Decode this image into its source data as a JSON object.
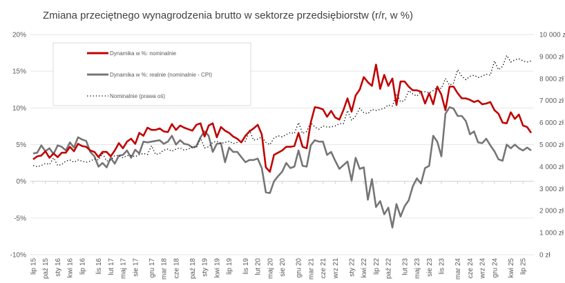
{
  "chart_data": {
    "type": "line",
    "title": "Zmiana przeciętnego wynagrodzenia brutto w sektorze przedsiębiorstw (r/r, w %)",
    "x_start": "lip 15",
    "x_unit": "month",
    "x_tick_labels": [
      {
        "label": "lip 15",
        "i": 0
      },
      {
        "label": "paź 15",
        "i": 3
      },
      {
        "label": "sty 16",
        "i": 6
      },
      {
        "label": "kwi 16",
        "i": 9
      },
      {
        "label": "lip 16",
        "i": 12
      },
      {
        "label": "lis 16",
        "i": 16
      },
      {
        "label": "lut 17",
        "i": 19
      },
      {
        "label": "maj 17",
        "i": 22
      },
      {
        "label": "sie 17",
        "i": 25
      },
      {
        "label": "gru 17",
        "i": 29
      },
      {
        "label": "mar 18",
        "i": 32
      },
      {
        "label": "cze 18",
        "i": 35
      },
      {
        "label": "paź 18",
        "i": 39
      },
      {
        "label": "sty 19",
        "i": 42
      },
      {
        "label": "kwi 19",
        "i": 45
      },
      {
        "label": "lip 19",
        "i": 48
      },
      {
        "label": "lis 19",
        "i": 52
      },
      {
        "label": "lut 20",
        "i": 55
      },
      {
        "label": "maj 20",
        "i": 58
      },
      {
        "label": "sie 20",
        "i": 61
      },
      {
        "label": "gru 20",
        "i": 65
      },
      {
        "label": "mar 21",
        "i": 68
      },
      {
        "label": "cze 21",
        "i": 71
      },
      {
        "label": "wrz 21",
        "i": 74
      },
      {
        "label": "sty 22",
        "i": 78
      },
      {
        "label": "kwi 22",
        "i": 81
      },
      {
        "label": "lip 22",
        "i": 84
      },
      {
        "label": "paź 22",
        "i": 87
      },
      {
        "label": "lut 23",
        "i": 91
      },
      {
        "label": "maj 23",
        "i": 94
      },
      {
        "label": "sie 23",
        "i": 97
      },
      {
        "label": "lis 23",
        "i": 100
      },
      {
        "label": "mar 24",
        "i": 104
      },
      {
        "label": "cze 24",
        "i": 107
      },
      {
        "label": "wrz 24",
        "i": 110
      },
      {
        "label": "gru 24",
        "i": 113
      },
      {
        "label": "kwi 25",
        "i": 117
      },
      {
        "label": "lip 25",
        "i": 120
      }
    ],
    "y_left": {
      "range": [
        -10,
        20
      ],
      "ticks": [
        20,
        15,
        10,
        5,
        0,
        -5,
        -10
      ],
      "tick_labels": [
        "20%",
        "15%",
        "10%",
        "5%",
        "0%",
        "-5%",
        "-10%"
      ]
    },
    "y_right": {
      "range": [
        0,
        10000
      ],
      "ticks": [
        10000,
        9000,
        8000,
        7000,
        6000,
        5000,
        4000,
        3000,
        2000,
        1000,
        0
      ],
      "tick_labels": [
        "10 000 zł",
        "9 000 zł",
        "8 000 zł",
        "7 000 zł",
        "6 000 zł",
        "5 000 zł",
        "4 000 zł",
        "3 000 zł",
        "2 000 zł",
        "1 000 zł",
        "0 zł"
      ]
    },
    "grid": true,
    "legend_position": "top-left",
    "series": [
      {
        "name": "Dynamika w %: nominalnie",
        "axis": "left",
        "color": "#C00000",
        "style": "solid",
        "values": [
          3.0,
          3.4,
          3.5,
          4.1,
          3.2,
          3.8,
          3.3,
          3.9,
          3.9,
          4.7,
          4.1,
          5.1,
          4.8,
          4.7,
          4.2,
          4.0,
          3.3,
          4.0,
          4.0,
          3.4,
          4.2,
          5.2,
          4.5,
          5.4,
          5.8,
          5.1,
          6.6,
          6.2,
          7.3,
          7.0,
          7.0,
          7.2,
          6.8,
          6.7,
          7.8,
          7.0,
          7.6,
          7.3,
          7.1,
          6.9,
          7.7,
          7.9,
          6.1,
          7.6,
          7.9,
          6.0,
          7.4,
          6.9,
          6.6,
          6.1,
          5.8,
          5.3,
          6.2,
          6.8,
          7.2,
          7.7,
          6.4,
          1.9,
          1.3,
          3.6,
          3.9,
          4.2,
          4.7,
          4.7,
          4.8,
          6.6,
          4.7,
          4.5,
          8.0,
          10.1,
          10.0,
          9.8,
          8.8,
          9.6,
          8.7,
          8.4,
          9.7,
          11.3,
          9.5,
          11.7,
          12.5,
          14.2,
          13.5,
          13.0,
          15.9,
          12.6,
          14.5,
          13.0,
          14.0,
          10.4,
          13.6,
          13.6,
          12.9,
          12.4,
          12.4,
          12.2,
          10.6,
          12.0,
          10.5,
          12.9,
          11.8,
          9.7,
          12.9,
          12.9,
          12.0,
          11.3,
          11.3,
          11.1,
          10.8,
          11.0,
          10.5,
          10.6,
          10.8,
          9.7,
          9.2,
          8.0,
          7.9,
          9.4,
          8.5,
          9.1,
          7.6,
          7.4,
          6.6
        ]
      },
      {
        "name": "Dynamika w %: realnie (nominalnie - CPI)",
        "axis": "left",
        "color": "#757575",
        "style": "solid",
        "values": [
          3.8,
          3.9,
          4.9,
          4.1,
          4.5,
          3.7,
          4.9,
          4.7,
          4.2,
          5.3,
          4.6,
          6.0,
          5.7,
          5.5,
          4.0,
          3.4,
          2.0,
          2.5,
          1.9,
          3.2,
          2.4,
          3.5,
          3.6,
          4.2,
          3.2,
          4.3,
          3.8,
          5.4,
          5.3,
          5.4,
          5.5,
          5.6,
          5.1,
          5.4,
          6.2,
          5.0,
          5.6,
          5.1,
          5.0,
          4.6,
          4.8,
          6.0,
          6.8,
          6.2,
          4.0,
          5.1,
          5.2,
          2.6,
          4.6,
          4.0,
          4.0,
          3.3,
          2.6,
          2.9,
          2.9,
          3.1,
          1.8,
          -1.5,
          -1.6,
          0.0,
          0.7,
          1.3,
          2.5,
          1.8,
          2.0,
          4.2,
          2.1,
          2.0,
          4.9,
          5.6,
          5.4,
          5.4,
          3.6,
          4.0,
          2.8,
          1.7,
          2.2,
          2.7,
          0.1,
          3.2,
          1.7,
          1.9,
          -2.5,
          0.3,
          -3.5,
          -2.7,
          -4.5,
          -3.6,
          -6.3,
          -3.1,
          -4.8,
          -3.4,
          -2.6,
          -0.7,
          0.4,
          -0.3,
          1.8,
          2.1,
          6.2,
          5.4,
          3.4,
          9.2,
          10.1,
          9.9,
          8.9,
          8.9,
          8.2,
          6.4,
          6.8,
          5.3,
          5.2,
          5.8,
          4.9,
          4.1,
          3.0,
          2.8,
          5.0,
          4.5,
          5.0,
          4.5,
          4.2,
          4.6,
          4.2
        ]
      },
      {
        "name": "Nominalnie (prawa oś)",
        "axis": "right",
        "color": "#000000",
        "style": "dotted",
        "values": [
          4050,
          4000,
          4050,
          4150,
          4100,
          4400,
          4050,
          4100,
          4250,
          4300,
          4200,
          4300,
          4250,
          4200,
          4250,
          4350,
          4300,
          4600,
          4250,
          4300,
          4500,
          4500,
          4400,
          4500,
          4500,
          4450,
          4550,
          4600,
          4550,
          4950,
          4550,
          4600,
          4750,
          4800,
          4700,
          4800,
          4850,
          4750,
          4800,
          4900,
          4850,
          5300,
          4850,
          4900,
          5100,
          5150,
          5050,
          5100,
          5150,
          5050,
          5100,
          5200,
          5150,
          5650,
          5200,
          5250,
          5350,
          5100,
          5000,
          5300,
          5400,
          5350,
          5450,
          5550,
          5500,
          6000,
          5500,
          5600,
          6000,
          5800,
          5700,
          5850,
          5800,
          5800,
          5850,
          5950,
          5950,
          6550,
          6100,
          6300,
          6650,
          6450,
          6400,
          6600,
          6550,
          6600,
          6650,
          6800,
          6750,
          7300,
          6950,
          7000,
          7450,
          7300,
          7200,
          7400,
          7400,
          7350,
          7450,
          7600,
          7550,
          8000,
          7700,
          7800,
          8400,
          8100,
          7950,
          8100,
          8150,
          8050,
          8100,
          8200,
          8150,
          8800,
          8400,
          8550,
          9050,
          8750,
          8850,
          8900,
          8800,
          8750,
          8800
        ]
      }
    ]
  }
}
